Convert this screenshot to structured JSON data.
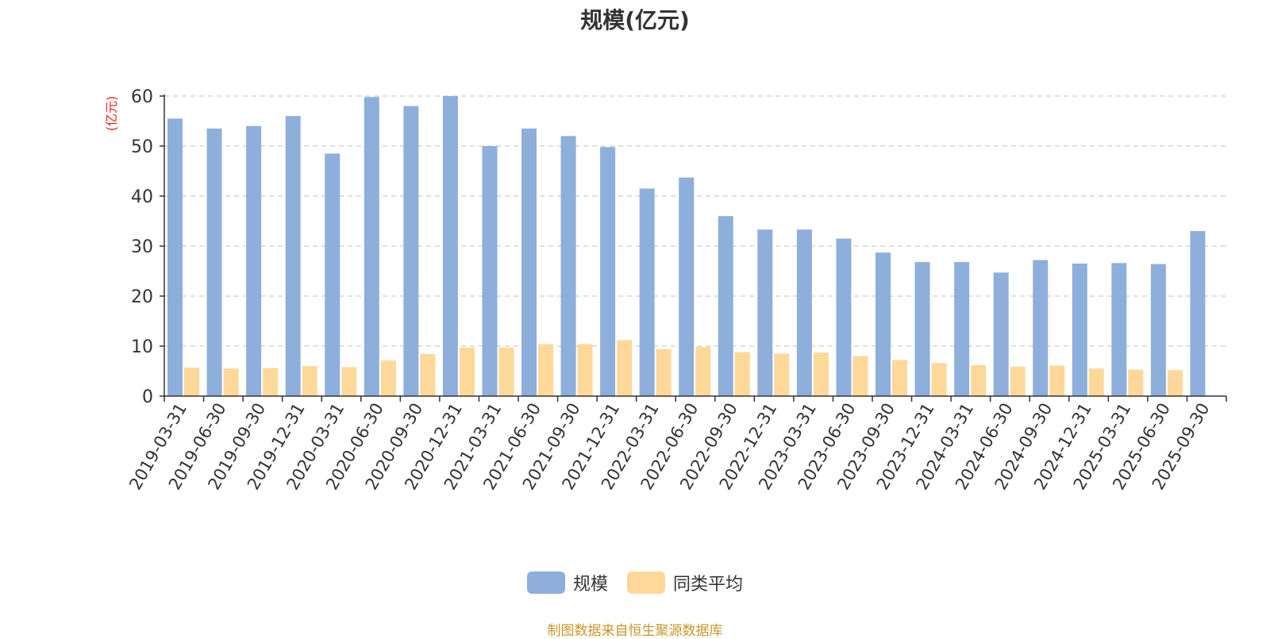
{
  "colors": {
    "series1": "#8eaedb",
    "series2": "#fdd899",
    "axis": "#333333",
    "grid": "#cccccc",
    "unit": "#e8261e",
    "source": "#c8962a"
  },
  "legend": {
    "series1_label": "规模",
    "series2_label": "同类平均"
  },
  "source_note": "制图数据来自恒生聚源数据库",
  "chart_data": {
    "type": "bar",
    "title": "规模(亿元)",
    "ylabel": "(亿元)",
    "xlabel": "",
    "ylim": [
      0,
      60
    ],
    "yticks": [
      0,
      10,
      20,
      30,
      40,
      50,
      60
    ],
    "grid": true,
    "legend_position": "bottom",
    "categories": [
      "2019-03-31",
      "2019-06-30",
      "2019-09-30",
      "2019-12-31",
      "2020-03-31",
      "2020-06-30",
      "2020-09-30",
      "2020-12-31",
      "2021-03-31",
      "2021-06-30",
      "2021-09-30",
      "2021-12-31",
      "2022-03-31",
      "2022-06-30",
      "2022-09-30",
      "2022-12-31",
      "2023-03-31",
      "2023-06-30",
      "2023-09-30",
      "2023-12-31",
      "2024-03-31",
      "2024-06-30",
      "2024-09-30",
      "2024-12-31",
      "2025-03-31",
      "2025-06-30",
      "2025-09-30"
    ],
    "series": [
      {
        "name": "规模",
        "values": [
          55.5,
          53.5,
          54.0,
          56.0,
          48.5,
          59.8,
          58.0,
          60.0,
          50.0,
          53.5,
          52.0,
          49.8,
          41.5,
          43.7,
          36.0,
          33.3,
          33.3,
          31.5,
          28.7,
          26.8,
          26.8,
          24.7,
          27.2,
          26.5,
          26.6,
          26.4,
          33.0
        ]
      },
      {
        "name": "同类平均",
        "values": [
          5.7,
          5.5,
          5.6,
          6.0,
          5.8,
          7.1,
          8.4,
          9.7,
          9.7,
          10.4,
          10.4,
          11.2,
          9.4,
          9.8,
          8.8,
          8.5,
          8.7,
          8.0,
          7.2,
          6.6,
          6.2,
          5.9,
          6.1,
          5.5,
          5.3,
          5.2,
          null
        ]
      }
    ]
  }
}
